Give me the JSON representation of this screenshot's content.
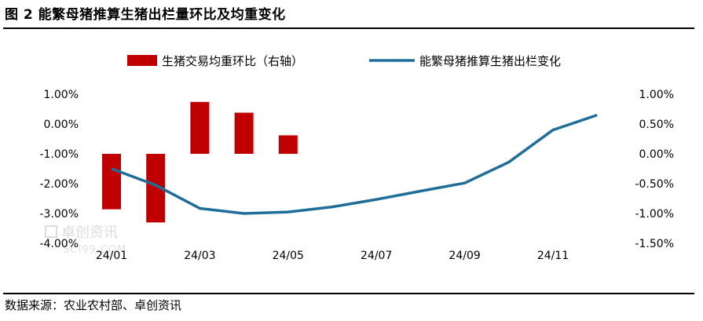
{
  "figure": {
    "title": "图 2 能繁母猪推算生猪出栏量环比及均重变化",
    "source": "数据来源：农业农村部、卓创资讯",
    "watermark": {
      "cn": "卓创资讯",
      "en": "SCI99.COM"
    }
  },
  "chart_data": {
    "type": "bar",
    "categories": [
      "24/01",
      "24/02",
      "24/03",
      "24/04",
      "24/05",
      "24/06",
      "24/07",
      "24/08",
      "24/09",
      "24/10",
      "24/11",
      "24/12"
    ],
    "x_tick_labels": [
      "24/01",
      "24/03",
      "24/05",
      "24/07",
      "24/09",
      "24/11"
    ],
    "left_axis": {
      "ylim": [
        -4.0,
        1.0
      ],
      "ticks": [
        "1.00%",
        "0.00%",
        "-1.00%",
        "-2.00%",
        "-3.00%",
        "-4.00%"
      ]
    },
    "right_axis": {
      "ylim": [
        -1.5,
        1.0
      ],
      "ticks": [
        "1.00%",
        "0.50%",
        "0.00%",
        "-0.50%",
        "-1.00%",
        "-1.50%"
      ]
    },
    "grid": false,
    "legend_position": "top",
    "series": [
      {
        "name": "生猪交易均重环比（右轴）",
        "type": "bar",
        "axis": "right",
        "color": "#c00000",
        "values": [
          -0.93,
          -1.15,
          0.87,
          0.69,
          0.31,
          null,
          null,
          null,
          null,
          null,
          null,
          null
        ]
      },
      {
        "name": "能繁母猪推算生猪出栏变化",
        "type": "line",
        "axis": "left",
        "color": "#1f6e9a",
        "values": [
          -1.5,
          -2.05,
          -2.83,
          -3.0,
          -2.95,
          -2.78,
          -2.53,
          -2.25,
          -1.98,
          -1.28,
          -0.2,
          0.3
        ]
      }
    ]
  }
}
